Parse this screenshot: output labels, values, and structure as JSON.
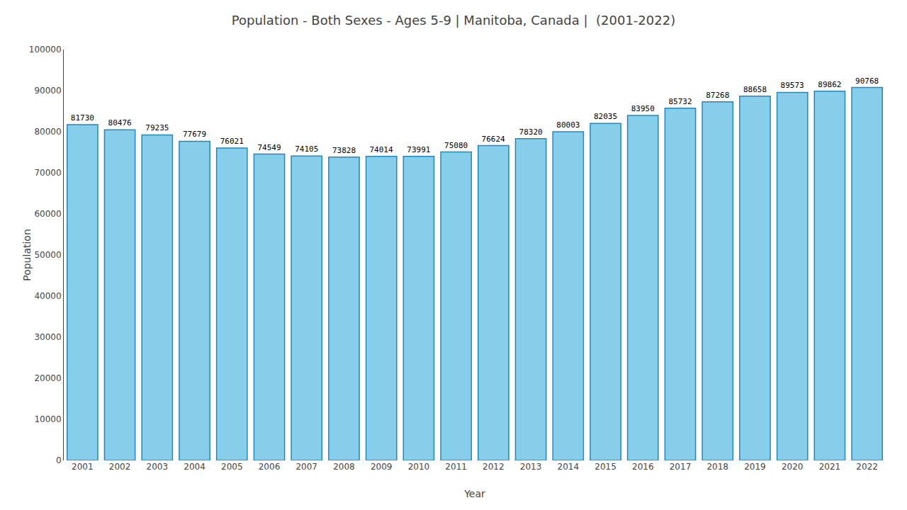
{
  "chart_data": {
    "type": "bar",
    "title": "Population - Both Sexes - Ages 5-9 | Manitoba, Canada |  (2001-2022)",
    "x_label": "Year",
    "y_label": "Population",
    "categories": [
      "2001",
      "2002",
      "2003",
      "2004",
      "2005",
      "2006",
      "2007",
      "2008",
      "2009",
      "2010",
      "2011",
      "2012",
      "2013",
      "2014",
      "2015",
      "2016",
      "2017",
      "2018",
      "2019",
      "2020",
      "2021",
      "2022"
    ],
    "values": [
      81730,
      80476,
      79235,
      77679,
      76021,
      74549,
      74105,
      73828,
      74014,
      73991,
      75080,
      76624,
      78320,
      80003,
      82035,
      83950,
      85732,
      87268,
      88658,
      89573,
      89862,
      90768
    ],
    "color": "#87CEEB",
    "ylim": [
      0,
      100000
    ],
    "yticks": [
      0,
      10000,
      20000,
      30000,
      40000,
      50000,
      60000,
      70000,
      80000,
      90000,
      100000
    ],
    "grid": false,
    "data_labels": true
  }
}
